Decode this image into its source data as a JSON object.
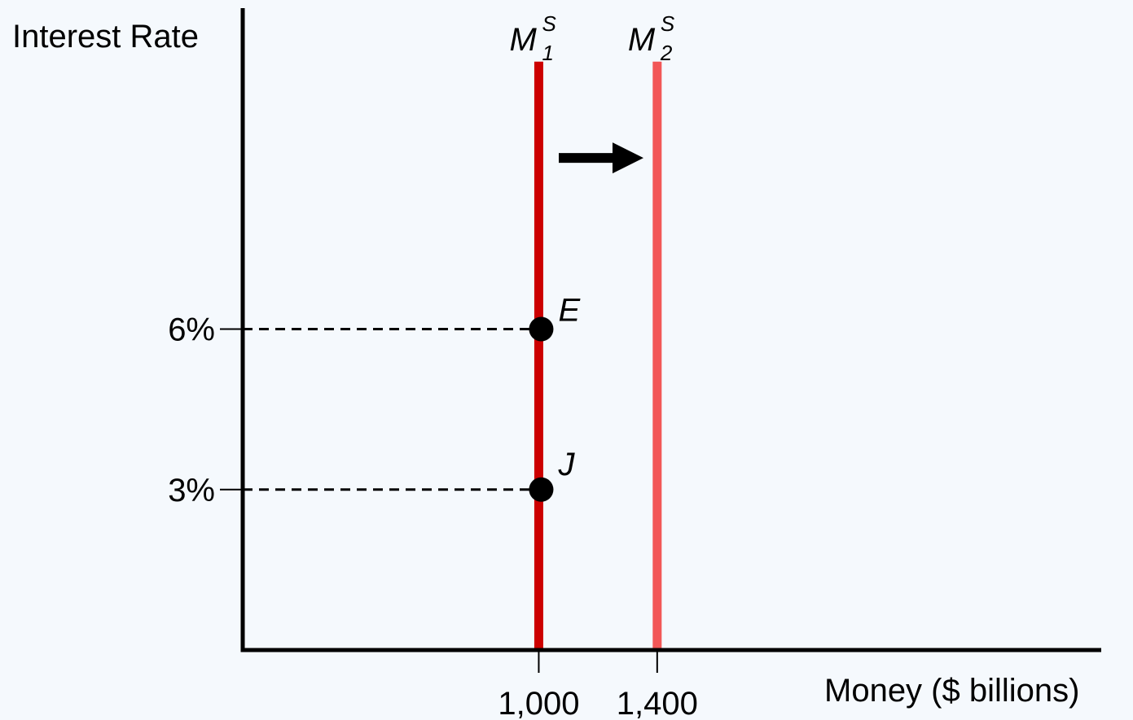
{
  "chart_data": {
    "type": "line",
    "xlabel": "Money ($ billions)",
    "ylabel": "Interest Rate",
    "xlim": [
      0,
      2900
    ],
    "ylim": [
      0,
      12
    ],
    "x_ticks": [
      {
        "value": 1000,
        "label": "1,000"
      },
      {
        "value": 1400,
        "label": "1,400"
      }
    ],
    "y_ticks": [
      {
        "value": 6,
        "label": "6%"
      },
      {
        "value": 3,
        "label": "3%"
      }
    ],
    "series": [
      {
        "name_main": "M",
        "name_sup": "S",
        "name_sub": "1",
        "x": 1000,
        "color": "#cc0000",
        "y_top": 11
      },
      {
        "name_main": "M",
        "name_sup": "S",
        "name_sub": "2",
        "x": 1400,
        "color": "#f25757",
        "y_top": 11
      }
    ],
    "points": [
      {
        "label": "E",
        "x": 1000,
        "y": 6
      },
      {
        "label": "J",
        "x": 1000,
        "y": 3
      }
    ],
    "shift_arrow": {
      "direction": "right",
      "from_x": 1060,
      "to_x": 1350,
      "y": 9.2
    }
  },
  "colors": {
    "axis": "#000000",
    "background": "#f5f9fd"
  }
}
